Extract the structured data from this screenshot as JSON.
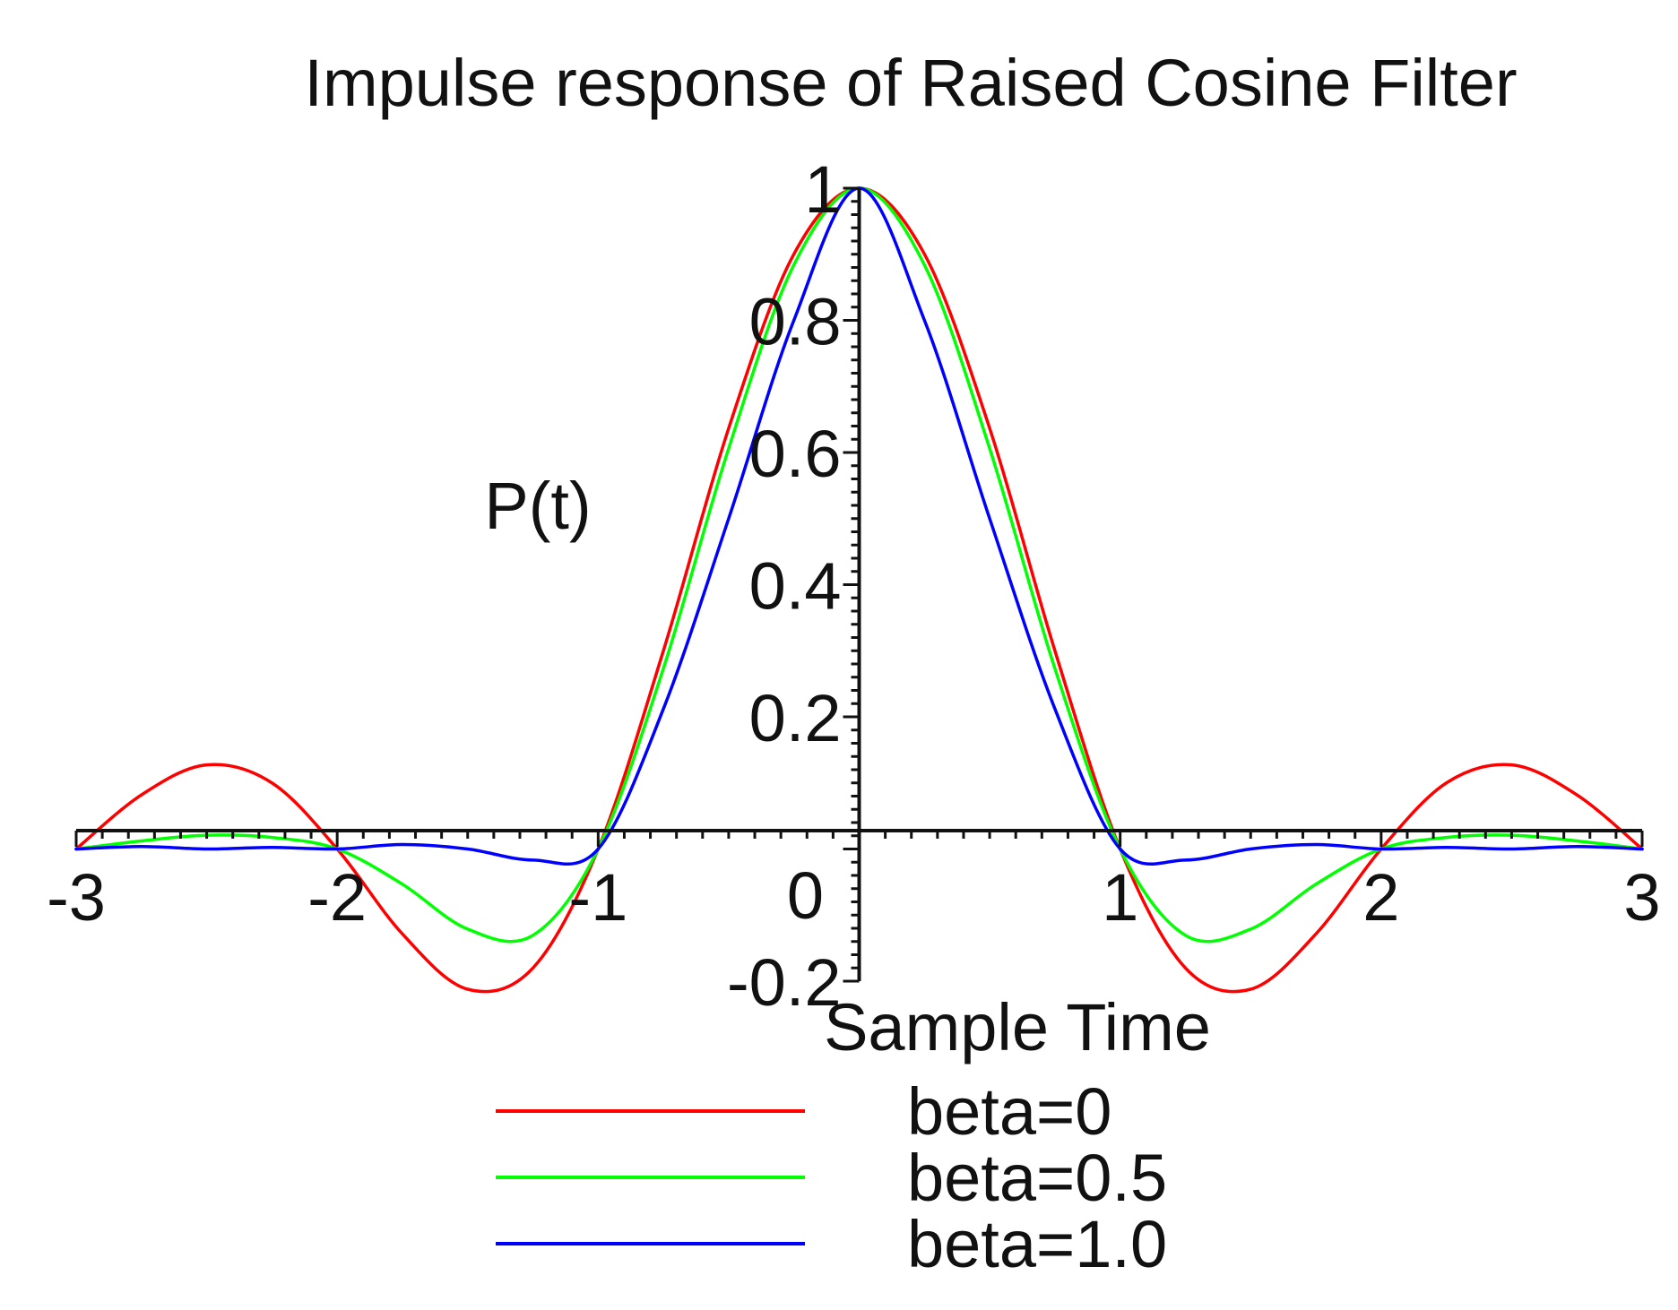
{
  "chart_data": {
    "type": "line",
    "title": "Impulse response of Raised Cosine Filter",
    "xlabel": "Sample Time",
    "ylabel": "P(t)",
    "xlim": [
      -3,
      3
    ],
    "ylim": [
      -0.2,
      1
    ],
    "x_ticks": [
      -3,
      -2,
      -1,
      1,
      2,
      3
    ],
    "x_tick_labels": [
      "-3",
      "-2",
      "-1",
      "1",
      "2",
      "3"
    ],
    "y_ticks": [
      -0.2,
      0.2,
      0.4,
      0.6,
      0.8,
      1
    ],
    "y_tick_labels": [
      "-0.2",
      "0.2",
      "0.4",
      "0.6",
      "0.8",
      "1"
    ],
    "origin_label": "0",
    "grid": false,
    "legend_position": "bottom",
    "x": [
      -3.0,
      -2.75,
      -2.5,
      -2.25,
      -2.0,
      -1.75,
      -1.5,
      -1.25,
      -1.0,
      -0.75,
      -0.5,
      -0.25,
      0.0,
      0.25,
      0.5,
      0.75,
      1.0,
      1.25,
      1.5,
      1.75,
      2.0,
      2.25,
      2.5,
      2.75,
      3.0
    ],
    "series": [
      {
        "name": "beta=0",
        "color": "#ff0000",
        "values": [
          0.0,
          0.0819,
          0.1273,
          0.1,
          0.0,
          -0.1286,
          -0.2122,
          -0.1801,
          0.0,
          0.3001,
          0.6366,
          0.9003,
          1.0,
          0.9003,
          0.6366,
          0.3001,
          0.0,
          -0.1801,
          -0.2122,
          -0.1286,
          0.0,
          0.1,
          0.1273,
          0.0819,
          0.0
        ]
      },
      {
        "name": "beta=0.5",
        "color": "#00ff00",
        "values": [
          0.0,
          0.0122,
          0.0208,
          0.0175,
          0.0,
          -0.0533,
          -0.1212,
          -0.1306,
          0.0,
          0.2732,
          0.6061,
          0.884,
          1.0,
          0.884,
          0.6061,
          0.2732,
          0.0,
          -0.1306,
          -0.1212,
          -0.0533,
          0.0,
          0.0175,
          0.0208,
          0.0122,
          0.0
        ]
      },
      {
        "name": "beta=1.0",
        "color": "#0000ff",
        "values": [
          0.0,
          0.0037,
          0.0,
          0.0024,
          0.0,
          0.0067,
          0.0,
          -0.0167,
          0.0,
          0.2121,
          0.5,
          0.8002,
          1.0,
          0.8002,
          0.5,
          0.2121,
          0.0,
          -0.0167,
          0.0,
          0.0067,
          0.0,
          0.0024,
          0.0,
          0.0037,
          0.0
        ]
      }
    ]
  }
}
